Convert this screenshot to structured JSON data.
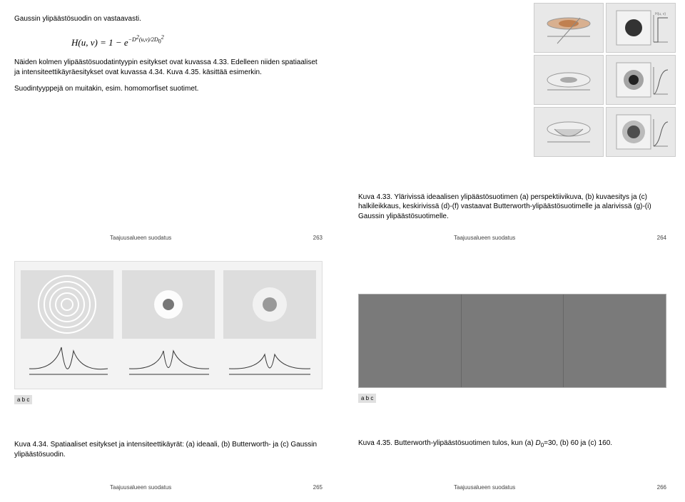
{
  "footer_label": "Taajuusalueen suodatus",
  "slide263": {
    "num": "263",
    "p1": "Gaussin ylipäästösuodin on vastaavasti.",
    "formula_html": "H(u, v) = 1 − e<span class='sup'>−D<span class='sup'>2</span>(u,v)/2D<span class='sub'>0</span><span class='sup'>2</span></span>",
    "p2": "Näiden kolmen ylipäästösuodatintyypin esitykset ovat kuvassa 4.33. Edelleen niiden spatiaaliset ja intensiteettikäyräesitykset ovat kuvassa 4.34. Kuva 4.35. käsittää esimerkin.",
    "p3": "Suodintyyppejä on muitakin, esim. homomorfiset suotimet."
  },
  "slide264": {
    "num": "264",
    "caption": "Kuva 4.33. Ylärivissä ideaalisen ylipäästösuotimen (a) perspektiivikuva, (b) kuvaesitys ja (c) halkileikkaus, keskirivissä (d)-(f) vastaavat Butterworth-ylipäästösuotimelle ja alarivissä (g)-(i) Gaussin ylipäästösuotimelle.",
    "axis_label_left": "H(u, v)",
    "axis_label_right": "H(u, v)"
  },
  "slide265": {
    "num": "265",
    "abc": "a b c",
    "caption": "Kuva 4.34. Spatiaaliset esitykset ja intensiteettikäyrät: (a) ideaali, (b) Butterworth- ja (c) Gaussin ylipäästösuodin."
  },
  "slide266": {
    "num": "266",
    "abc": "a b c",
    "caption_html": "Kuva 4.35. Butterworth-ylipäästösuotimen tulos, kun (a) <i>D</i><span class='sub'>0</span>=30, (b) 60 ja (c) 160."
  }
}
